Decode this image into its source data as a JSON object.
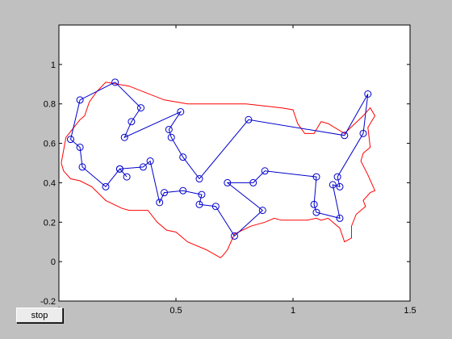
{
  "controls": {
    "stop_label": "stop"
  },
  "chart_data": {
    "type": "line",
    "title": "",
    "xlabel": "",
    "ylabel": "",
    "xlim": [
      0,
      1.5
    ],
    "ylim": [
      -0.2,
      1.2
    ],
    "x_ticks": [
      "0",
      "0.5",
      "1",
      "1.5"
    ],
    "y_ticks": [
      "-0.2",
      "0",
      "0.2",
      "0.4",
      "0.6",
      "0.8",
      "1"
    ],
    "grid": false,
    "colors": {
      "outline": "#ff0000",
      "tour": "#0000cc",
      "axes_bg": "#ffffff",
      "figure_bg": "#c0c0c0"
    },
    "outline": {
      "x": [
        0.11,
        0.13,
        0.16,
        0.2,
        0.3,
        0.45,
        0.55,
        0.6,
        0.8,
        0.95,
        1.0,
        1.02,
        1.05,
        1.09,
        1.12,
        1.15,
        1.22,
        1.3,
        1.33,
        1.35,
        1.32,
        1.33,
        1.3,
        1.29,
        1.32,
        1.35,
        1.33,
        1.3,
        1.31,
        1.27,
        1.25,
        1.25,
        1.22,
        1.2,
        1.15,
        1.12,
        1.1,
        1.06,
        0.95,
        0.92,
        0.88,
        0.82,
        0.75,
        0.72,
        0.7,
        0.69,
        0.63,
        0.55,
        0.5,
        0.46,
        0.42,
        0.38,
        0.3,
        0.27,
        0.2,
        0.14,
        0.09,
        0.05,
        0.02,
        0.01,
        0.03,
        0.05,
        0.07,
        0.09
      ],
      "y": [
        0.74,
        0.81,
        0.86,
        0.91,
        0.89,
        0.82,
        0.8,
        0.8,
        0.8,
        0.78,
        0.77,
        0.7,
        0.65,
        0.65,
        0.71,
        0.7,
        0.65,
        0.74,
        0.78,
        0.74,
        0.68,
        0.58,
        0.55,
        0.51,
        0.44,
        0.36,
        0.35,
        0.31,
        0.28,
        0.24,
        0.18,
        0.12,
        0.1,
        0.17,
        0.22,
        0.21,
        0.22,
        0.21,
        0.21,
        0.22,
        0.2,
        0.18,
        0.14,
        0.06,
        0.03,
        0.02,
        0.06,
        0.1,
        0.15,
        0.16,
        0.2,
        0.26,
        0.26,
        0.27,
        0.31,
        0.38,
        0.41,
        0.42,
        0.46,
        0.5,
        0.63,
        0.66,
        0.69,
        0.72
      ]
    },
    "tour": {
      "x": [
        0.24,
        0.09,
        0.05,
        0.09,
        0.1,
        0.2,
        0.26,
        0.29,
        0.26,
        0.36,
        0.39,
        0.43,
        0.45,
        0.53,
        0.61,
        0.6,
        0.67,
        0.75,
        0.87,
        0.72,
        0.83,
        0.88,
        1.1,
        1.09,
        1.1,
        1.2,
        1.17,
        1.2,
        1.19,
        1.3,
        1.32,
        1.22,
        0.81,
        0.6,
        0.53,
        0.48,
        0.47,
        0.52,
        0.28,
        0.31,
        0.35,
        0.24
      ],
      "y": [
        0.91,
        0.82,
        0.62,
        0.58,
        0.48,
        0.38,
        0.47,
        0.43,
        0.47,
        0.48,
        0.51,
        0.3,
        0.35,
        0.36,
        0.34,
        0.29,
        0.28,
        0.13,
        0.26,
        0.4,
        0.4,
        0.46,
        0.43,
        0.29,
        0.25,
        0.22,
        0.39,
        0.38,
        0.43,
        0.65,
        0.85,
        0.64,
        0.72,
        0.42,
        0.53,
        0.63,
        0.67,
        0.76,
        0.63,
        0.71,
        0.78,
        0.91
      ]
    }
  }
}
